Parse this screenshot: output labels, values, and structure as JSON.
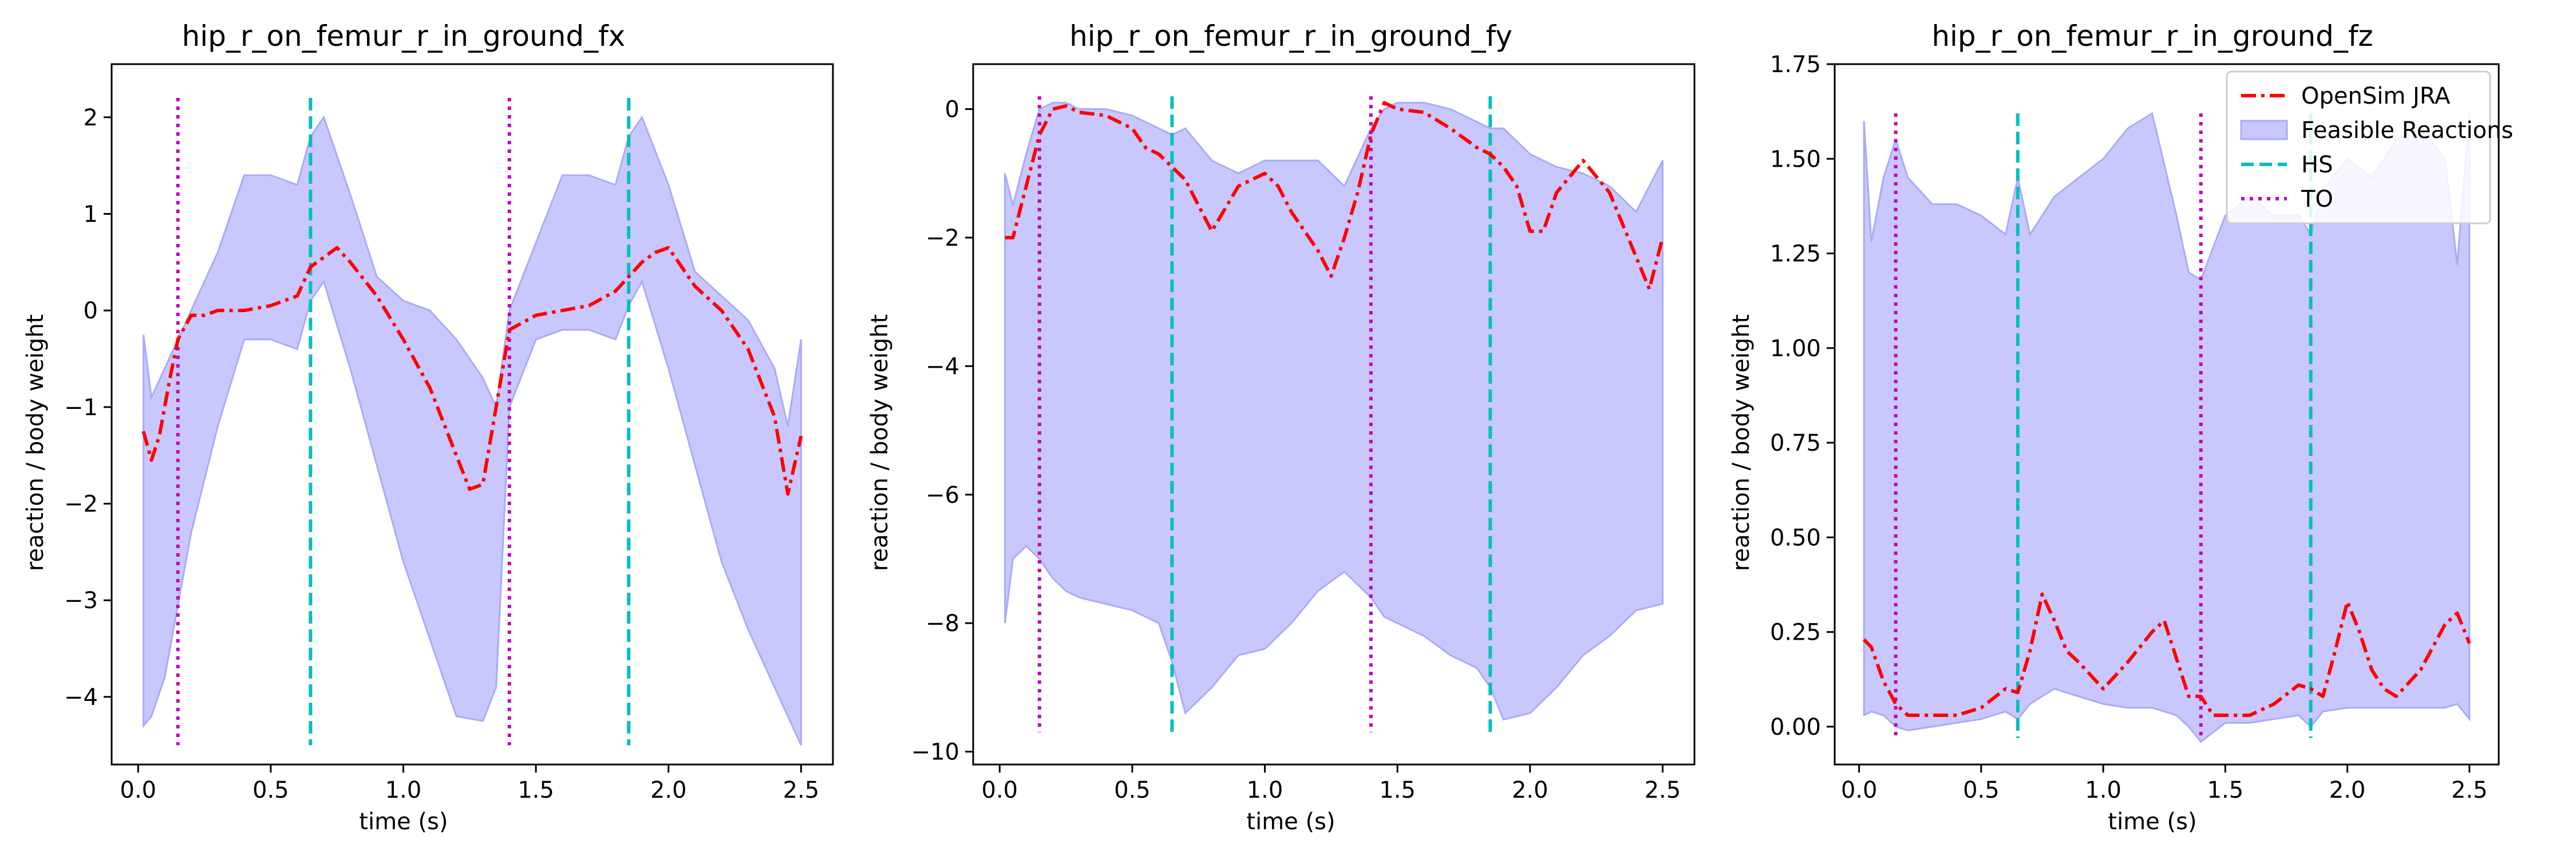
{
  "chart_data": [
    {
      "type": "line",
      "title": "hip_r_on_femur_r_in_ground_fx",
      "xlabel": "time (s)",
      "ylabel": "reaction / body weight",
      "xlim": [
        -0.1,
        2.62
      ],
      "ylim": [
        -4.7,
        2.55
      ],
      "xticks": [
        0.0,
        0.5,
        1.0,
        1.5,
        2.0,
        2.5
      ],
      "xtick_labels": [
        "0.0",
        "0.5",
        "1.0",
        "1.5",
        "2.0",
        "2.5"
      ],
      "yticks": [
        -4,
        -3,
        -2,
        -1,
        0,
        1,
        2
      ],
      "ytick_labels": [
        "−4",
        "−3",
        "−2",
        "−1",
        "0",
        "1",
        "2"
      ],
      "band": {
        "x": [
          0.02,
          0.05,
          0.1,
          0.2,
          0.3,
          0.4,
          0.5,
          0.6,
          0.65,
          0.7,
          0.8,
          0.9,
          1.0,
          1.1,
          1.2,
          1.3,
          1.35,
          1.4,
          1.5,
          1.6,
          1.7,
          1.8,
          1.85,
          1.9,
          2.0,
          2.1,
          2.2,
          2.3,
          2.4,
          2.45,
          2.5
        ],
        "lower": [
          -4.3,
          -4.2,
          -3.8,
          -2.3,
          -1.2,
          -0.3,
          -0.3,
          -0.4,
          0.1,
          0.3,
          -0.6,
          -1.6,
          -2.6,
          -3.4,
          -4.2,
          -4.25,
          -3.9,
          -1.0,
          -0.3,
          -0.2,
          -0.2,
          -0.3,
          0.05,
          0.3,
          -0.6,
          -1.6,
          -2.6,
          -3.3,
          -3.9,
          -4.2,
          -4.5
        ],
        "upper": [
          -0.25,
          -0.9,
          -0.6,
          0.0,
          0.6,
          1.4,
          1.4,
          1.3,
          1.8,
          2.0,
          1.2,
          0.35,
          0.1,
          0.0,
          -0.3,
          -0.7,
          -1.0,
          0.0,
          0.7,
          1.4,
          1.4,
          1.3,
          1.8,
          2.0,
          1.3,
          0.4,
          0.15,
          -0.1,
          -0.6,
          -1.2,
          -0.3
        ]
      },
      "series": [
        {
          "name": "OpenSim JRA",
          "x": [
            0.02,
            0.05,
            0.08,
            0.12,
            0.15,
            0.2,
            0.25,
            0.3,
            0.4,
            0.5,
            0.55,
            0.6,
            0.65,
            0.7,
            0.75,
            0.8,
            0.9,
            1.0,
            1.1,
            1.2,
            1.25,
            1.3,
            1.35,
            1.4,
            1.5,
            1.6,
            1.7,
            1.8,
            1.85,
            1.9,
            1.95,
            2.0,
            2.1,
            2.2,
            2.3,
            2.4,
            2.45,
            2.5
          ],
          "y": [
            -1.25,
            -1.55,
            -1.3,
            -0.7,
            -0.3,
            -0.05,
            -0.05,
            0.0,
            0.0,
            0.05,
            0.1,
            0.15,
            0.45,
            0.55,
            0.65,
            0.5,
            0.15,
            -0.3,
            -0.8,
            -1.5,
            -1.85,
            -1.8,
            -1.0,
            -0.2,
            -0.05,
            0.0,
            0.05,
            0.2,
            0.35,
            0.5,
            0.6,
            0.65,
            0.25,
            0.0,
            -0.4,
            -1.1,
            -1.9,
            -1.3
          ]
        }
      ],
      "vlines": [
        {
          "name": "HS",
          "x": [
            0.65,
            1.85
          ],
          "ymin": -4.5,
          "ymax": 2.2
        },
        {
          "name": "TO",
          "x": [
            0.15,
            1.4
          ],
          "ymin": -4.5,
          "ymax": 2.2
        }
      ]
    },
    {
      "type": "line",
      "title": "hip_r_on_femur_r_in_ground_fy",
      "xlabel": "time (s)",
      "ylabel": "reaction / body weight",
      "xlim": [
        -0.1,
        2.62
      ],
      "ylim": [
        -10.2,
        0.7
      ],
      "xticks": [
        0.0,
        0.5,
        1.0,
        1.5,
        2.0,
        2.5
      ],
      "xtick_labels": [
        "0.0",
        "0.5",
        "1.0",
        "1.5",
        "2.0",
        "2.5"
      ],
      "yticks": [
        -10,
        -8,
        -6,
        -4,
        -2,
        0
      ],
      "ytick_labels": [
        "−10",
        "−8",
        "−6",
        "−4",
        "−2",
        "0"
      ],
      "band": {
        "x": [
          0.02,
          0.05,
          0.1,
          0.15,
          0.2,
          0.25,
          0.3,
          0.4,
          0.5,
          0.6,
          0.65,
          0.7,
          0.8,
          0.9,
          1.0,
          1.1,
          1.2,
          1.3,
          1.4,
          1.45,
          1.5,
          1.6,
          1.7,
          1.8,
          1.85,
          1.9,
          2.0,
          2.1,
          2.2,
          2.3,
          2.4,
          2.5
        ],
        "lower": [
          -8.0,
          -7.0,
          -6.8,
          -7.0,
          -7.3,
          -7.5,
          -7.6,
          -7.7,
          -7.8,
          -8.0,
          -8.6,
          -9.4,
          -9.0,
          -8.5,
          -8.4,
          -8.0,
          -7.5,
          -7.2,
          -7.6,
          -7.9,
          -8.0,
          -8.2,
          -8.5,
          -8.7,
          -9.0,
          -9.5,
          -9.4,
          -9.0,
          -8.5,
          -8.2,
          -7.8,
          -7.7
        ],
        "upper": [
          -1.0,
          -1.5,
          -0.7,
          0.0,
          0.1,
          0.1,
          0.0,
          0.0,
          -0.1,
          -0.3,
          -0.4,
          -0.3,
          -0.8,
          -1.0,
          -0.8,
          -0.8,
          -0.8,
          -1.2,
          -0.3,
          0.0,
          0.1,
          0.1,
          0.0,
          -0.2,
          -0.3,
          -0.3,
          -0.7,
          -0.9,
          -1.0,
          -1.2,
          -1.6,
          -0.8
        ]
      },
      "series": [
        {
          "name": "OpenSim JRA",
          "x": [
            0.02,
            0.05,
            0.1,
            0.15,
            0.2,
            0.25,
            0.3,
            0.4,
            0.5,
            0.55,
            0.6,
            0.65,
            0.7,
            0.75,
            0.8,
            0.9,
            1.0,
            1.05,
            1.1,
            1.2,
            1.25,
            1.3,
            1.35,
            1.4,
            1.45,
            1.5,
            1.6,
            1.7,
            1.8,
            1.85,
            1.9,
            1.95,
            2.0,
            2.05,
            2.1,
            2.2,
            2.3,
            2.4,
            2.45,
            2.5
          ],
          "y": [
            -2.0,
            -2.0,
            -1.2,
            -0.4,
            0.0,
            0.05,
            -0.05,
            -0.1,
            -0.3,
            -0.6,
            -0.7,
            -0.9,
            -1.1,
            -1.5,
            -1.9,
            -1.2,
            -1.0,
            -1.2,
            -1.6,
            -2.2,
            -2.6,
            -2.0,
            -1.3,
            -0.4,
            0.1,
            0.0,
            -0.05,
            -0.3,
            -0.6,
            -0.7,
            -0.9,
            -1.2,
            -1.9,
            -1.9,
            -1.3,
            -0.8,
            -1.3,
            -2.3,
            -2.8,
            -2.0
          ]
        }
      ],
      "vlines": [
        {
          "name": "HS",
          "x": [
            0.65,
            1.85
          ],
          "ymin": -9.7,
          "ymax": 0.2
        },
        {
          "name": "TO",
          "x": [
            0.15,
            1.4
          ],
          "ymin": -9.7,
          "ymax": 0.2
        }
      ]
    },
    {
      "type": "line",
      "title": "hip_r_on_femur_r_in_ground_fz",
      "xlabel": "time (s)",
      "ylabel": "reaction / body weight",
      "xlim": [
        -0.1,
        2.62
      ],
      "ylim": [
        -0.1,
        1.75
      ],
      "xticks": [
        0.0,
        0.5,
        1.0,
        1.5,
        2.0,
        2.5
      ],
      "xtick_labels": [
        "0.0",
        "0.5",
        "1.0",
        "1.5",
        "2.0",
        "2.5"
      ],
      "yticks": [
        0.0,
        0.25,
        0.5,
        0.75,
        1.0,
        1.25,
        1.5,
        1.75
      ],
      "ytick_labels": [
        "0.00",
        "0.25",
        "0.50",
        "0.75",
        "1.00",
        "1.25",
        "1.50",
        "1.75"
      ],
      "band": {
        "x": [
          0.02,
          0.05,
          0.1,
          0.15,
          0.2,
          0.3,
          0.4,
          0.5,
          0.6,
          0.65,
          0.7,
          0.8,
          0.9,
          1.0,
          1.1,
          1.2,
          1.3,
          1.35,
          1.4,
          1.5,
          1.6,
          1.7,
          1.8,
          1.85,
          1.9,
          2.0,
          2.1,
          2.2,
          2.3,
          2.4,
          2.45,
          2.5
        ],
        "lower": [
          0.03,
          0.04,
          0.03,
          0.0,
          -0.01,
          0.0,
          0.01,
          0.02,
          0.04,
          0.02,
          0.06,
          0.1,
          0.08,
          0.06,
          0.05,
          0.05,
          0.03,
          0.0,
          -0.04,
          0.01,
          0.01,
          0.02,
          0.03,
          0.0,
          0.04,
          0.05,
          0.05,
          0.05,
          0.05,
          0.05,
          0.06,
          0.02
        ],
        "upper": [
          1.6,
          1.28,
          1.45,
          1.55,
          1.45,
          1.38,
          1.38,
          1.35,
          1.3,
          1.45,
          1.3,
          1.4,
          1.45,
          1.5,
          1.58,
          1.62,
          1.35,
          1.2,
          1.18,
          1.35,
          1.4,
          1.35,
          1.35,
          1.3,
          1.42,
          1.5,
          1.45,
          1.55,
          1.58,
          1.5,
          1.22,
          1.62
        ]
      },
      "series": [
        {
          "name": "OpenSim JRA",
          "x": [
            0.02,
            0.05,
            0.1,
            0.15,
            0.2,
            0.3,
            0.4,
            0.5,
            0.6,
            0.65,
            0.7,
            0.75,
            0.8,
            0.85,
            0.9,
            1.0,
            1.1,
            1.2,
            1.25,
            1.3,
            1.35,
            1.4,
            1.45,
            1.5,
            1.6,
            1.7,
            1.8,
            1.85,
            1.9,
            1.95,
            2.0,
            2.05,
            2.1,
            2.15,
            2.2,
            2.3,
            2.4,
            2.45,
            2.5
          ],
          "y": [
            0.23,
            0.21,
            0.12,
            0.06,
            0.03,
            0.03,
            0.03,
            0.05,
            0.1,
            0.09,
            0.2,
            0.35,
            0.28,
            0.2,
            0.17,
            0.1,
            0.17,
            0.25,
            0.28,
            0.18,
            0.08,
            0.08,
            0.03,
            0.03,
            0.03,
            0.06,
            0.11,
            0.1,
            0.08,
            0.2,
            0.33,
            0.25,
            0.15,
            0.1,
            0.08,
            0.15,
            0.27,
            0.3,
            0.22
          ]
        }
      ],
      "vlines": [
        {
          "name": "HS",
          "x": [
            0.65,
            1.85
          ],
          "ymin": -0.03,
          "ymax": 1.62
        },
        {
          "name": "TO",
          "x": [
            0.15,
            1.4
          ],
          "ymin": -0.03,
          "ymax": 1.62
        }
      ],
      "legend": {
        "placement": "top-right",
        "entries": [
          {
            "label": "OpenSim JRA",
            "kind": "line"
          },
          {
            "label": "Feasible Reactions",
            "kind": "band"
          },
          {
            "label": "HS",
            "kind": "vline-hs"
          },
          {
            "label": "TO",
            "kind": "vline-to"
          }
        ]
      }
    }
  ],
  "colors": {
    "jra_line": "#ff0000",
    "band_fill": "#c8c8ff",
    "band_edge": "#aaaaf5",
    "hs": "#00bfbf",
    "to": "#bf00bf",
    "axes": "#000000"
  }
}
